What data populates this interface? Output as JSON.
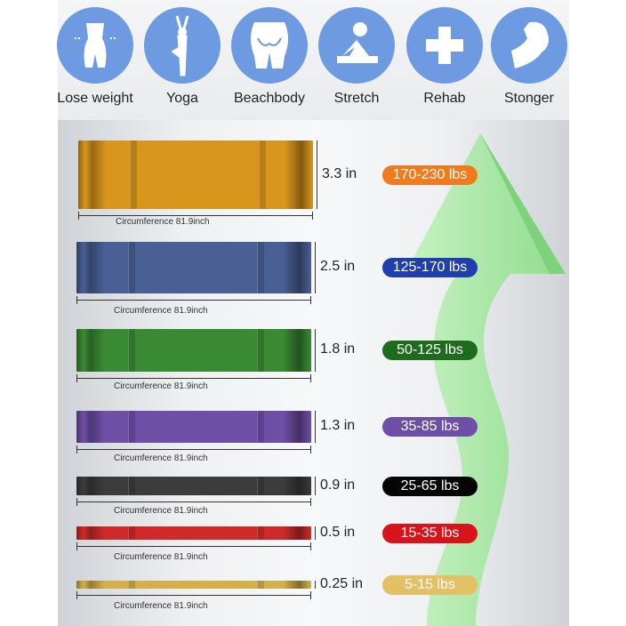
{
  "uses": [
    {
      "label": "Lose weight",
      "icon": "waist-icon"
    },
    {
      "label": "Yoga",
      "icon": "yoga-pose-icon"
    },
    {
      "label": "Beachbody",
      "icon": "glutes-icon"
    },
    {
      "label": "Stretch",
      "icon": "stretch-pose-icon"
    },
    {
      "label": "Rehab",
      "icon": "medical-cross-icon"
    },
    {
      "label": "Stonger",
      "icon": "flexed-arm-icon"
    }
  ],
  "icon_color": "#6d9ae0",
  "arrow_color": "#9be39a",
  "bands": [
    {
      "width": "3.3 in",
      "resistance": "170-230 lbs",
      "circumference": "Circumference 81.9inch",
      "color": "#d9961c",
      "pill_color": "#f07a1c"
    },
    {
      "width": "2.5 in",
      "resistance": "125-170 lbs",
      "circumference": "Circumference 81.9inch",
      "color": "#4a5f94",
      "pill_color": "#1f3fae"
    },
    {
      "width": "1.8 in",
      "resistance": "50-125 lbs",
      "circumference": "Circumference 81.9inch",
      "color": "#3a8a34",
      "pill_color": "#1f6b1d"
    },
    {
      "width": "1.3 in",
      "resistance": "35-85 lbs",
      "circumference": "Circumference 81.9inch",
      "color": "#6e4fa6",
      "pill_color": "#6d4fa8"
    },
    {
      "width": "0.9 in",
      "resistance": "25-65 lbs",
      "circumference": "Circumference 81.9inch",
      "color": "#3c3c3c",
      "pill_color": "#050505"
    },
    {
      "width": "0.5 in",
      "resistance": "15-35 lbs",
      "circumference": "Circumference 81.9inch",
      "color": "#cf2a2a",
      "pill_color": "#d8141b"
    },
    {
      "width": "0.25 in",
      "resistance": "5-15 lbs",
      "circumference": "Circumference 81.9inch",
      "color": "#d4b04a",
      "pill_color": "#e3c064"
    }
  ]
}
